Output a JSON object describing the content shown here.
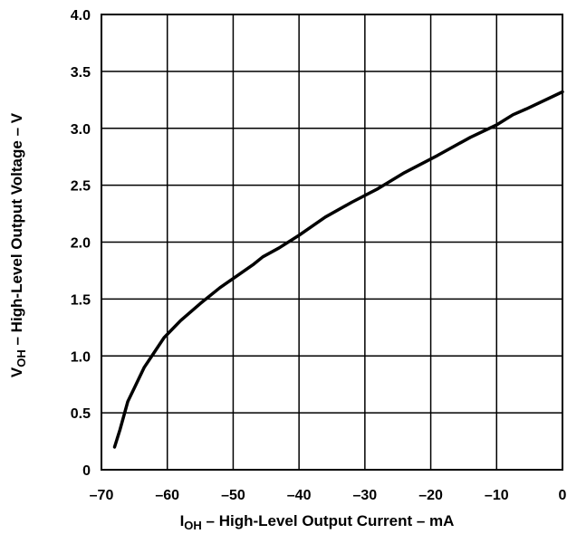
{
  "chart_data": {
    "type": "line",
    "title": "",
    "xlabel": {
      "prefix": "I",
      "subscript": "OH",
      "suffix": " – High-Level Output Current – mA"
    },
    "ylabel": {
      "prefix": "V",
      "subscript": "OH",
      "suffix": " – High-Level Output Voltage – V"
    },
    "xlim": [
      -70,
      0
    ],
    "ylim": [
      0,
      4.0
    ],
    "xticks": [
      -70,
      -60,
      -50,
      -40,
      -30,
      -20,
      -10,
      0
    ],
    "xtick_labels": [
      "–70",
      "–60",
      "–50",
      "–40",
      "–30",
      "–20",
      "–10",
      "0"
    ],
    "yticks": [
      0,
      0.5,
      1.0,
      1.5,
      2.0,
      2.5,
      3.0,
      3.5,
      4.0
    ],
    "ytick_labels": [
      "0",
      "0.5",
      "1.0",
      "1.5",
      "2.0",
      "2.5",
      "3.0",
      "3.5",
      "4.0"
    ],
    "grid": true,
    "color": "#000000",
    "series": [
      {
        "x": [
          -68.0,
          -67.2,
          -66.0,
          -65.0,
          -63.5,
          -62.0,
          -60.5,
          -58.0,
          -55.0,
          -52.0,
          -49.0,
          -47.0,
          -45.5,
          -43.0,
          -40.0,
          -36.0,
          -32.0,
          -28.0,
          -24.0,
          -19.0,
          -14.0,
          -10.0,
          -7.5,
          -5.5,
          0.0
        ],
        "y": [
          0.2,
          0.35,
          0.6,
          0.72,
          0.9,
          1.03,
          1.16,
          1.31,
          1.46,
          1.6,
          1.72,
          1.8,
          1.87,
          1.95,
          2.06,
          2.22,
          2.35,
          2.47,
          2.61,
          2.76,
          2.92,
          3.03,
          3.12,
          3.17,
          3.32
        ]
      }
    ]
  }
}
